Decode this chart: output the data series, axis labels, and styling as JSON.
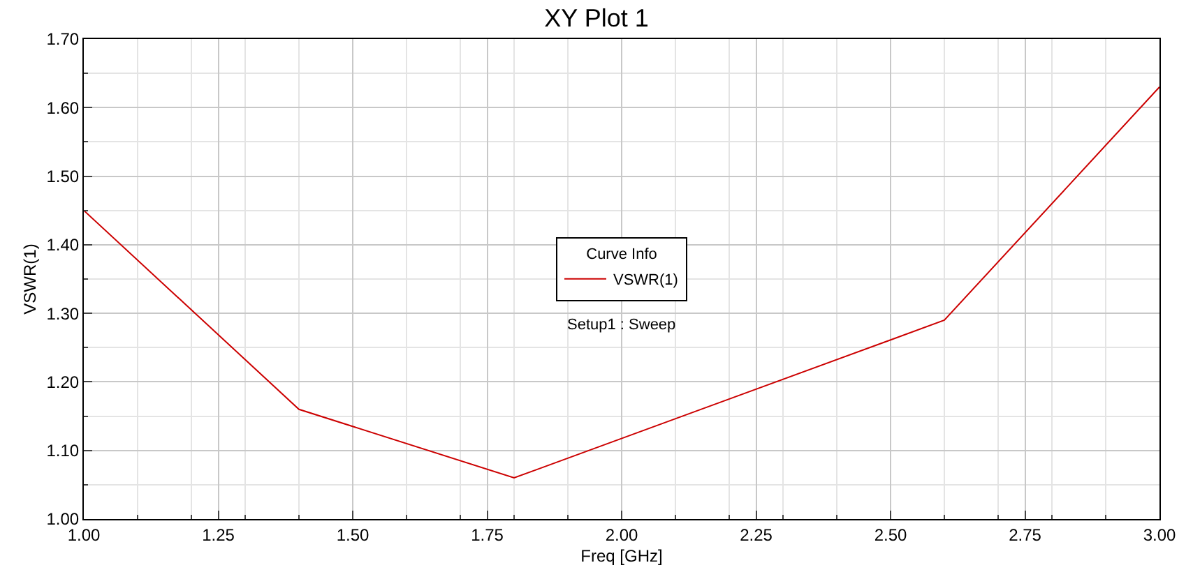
{
  "chart_data": {
    "type": "line",
    "title": "XY Plot 1",
    "xlabel": "Freq [GHz]",
    "ylabel": "VSWR(1)",
    "legend_title": "Curve Info",
    "x": [
      1.0,
      1.4,
      1.8,
      2.6,
      3.0
    ],
    "series": [
      {
        "name": "VSWR(1)",
        "color": "#cc0000",
        "values": [
          1.45,
          1.16,
          1.06,
          1.29,
          1.63
        ]
      }
    ],
    "xlim": [
      1.0,
      3.0
    ],
    "xticks": [
      {
        "value": 1,
        "label": "1.00"
      },
      {
        "value": 1.25,
        "label": "1.25"
      },
      {
        "value": 1.5,
        "label": "1.50"
      },
      {
        "value": 1.75,
        "label": "1.75"
      },
      {
        "value": 2,
        "label": "2.00"
      },
      {
        "value": 2.25,
        "label": "2.25"
      },
      {
        "value": 2.5,
        "label": "2.50"
      },
      {
        "value": 2.75,
        "label": "2.75"
      },
      {
        "value": 3,
        "label": "3.00"
      }
    ],
    "ylim": [
      1.0,
      1.7
    ],
    "yticks": [
      {
        "value": 1,
        "label": "1.00"
      },
      {
        "value": 1.1,
        "label": "1.10"
      },
      {
        "value": 1.2,
        "label": "1.20"
      },
      {
        "value": 1.3,
        "label": "1.30"
      },
      {
        "value": 1.4,
        "label": "1.40"
      },
      {
        "value": 1.5,
        "label": "1.50"
      },
      {
        "value": 1.6,
        "label": "1.60"
      },
      {
        "value": 1.7,
        "label": "1.70"
      }
    ],
    "annotations": [
      "Setup1 : Sweep"
    ],
    "grid": true,
    "legend": "center",
    "marker": "none",
    "line_style": "solid"
  }
}
